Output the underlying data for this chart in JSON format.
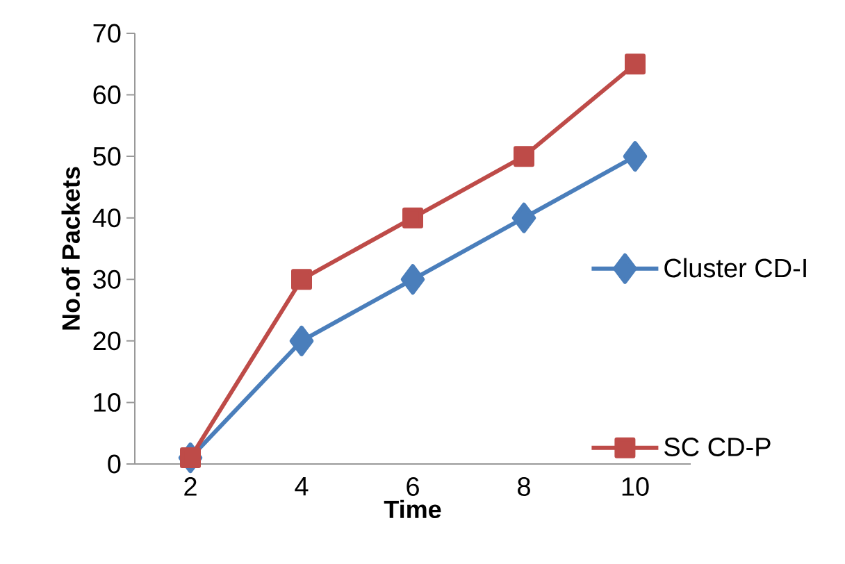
{
  "chart_data": {
    "type": "line",
    "xlabel": "Time",
    "ylabel": "No.of Packets",
    "categories": [
      "2",
      "4",
      "6",
      "8",
      "10"
    ],
    "series": [
      {
        "name": "Cluster CD-I",
        "color": "#4a7ebb",
        "marker": "diamond",
        "values": [
          1,
          20,
          30,
          40,
          50
        ]
      },
      {
        "name": "SC CD-P",
        "color": "#be4b48",
        "marker": "square",
        "values": [
          1,
          30,
          40,
          50,
          65
        ]
      }
    ],
    "ylim": [
      0,
      70
    ],
    "yticks": [
      0,
      10,
      20,
      30,
      40,
      50,
      60,
      70
    ],
    "legend": "right",
    "grid": false
  }
}
